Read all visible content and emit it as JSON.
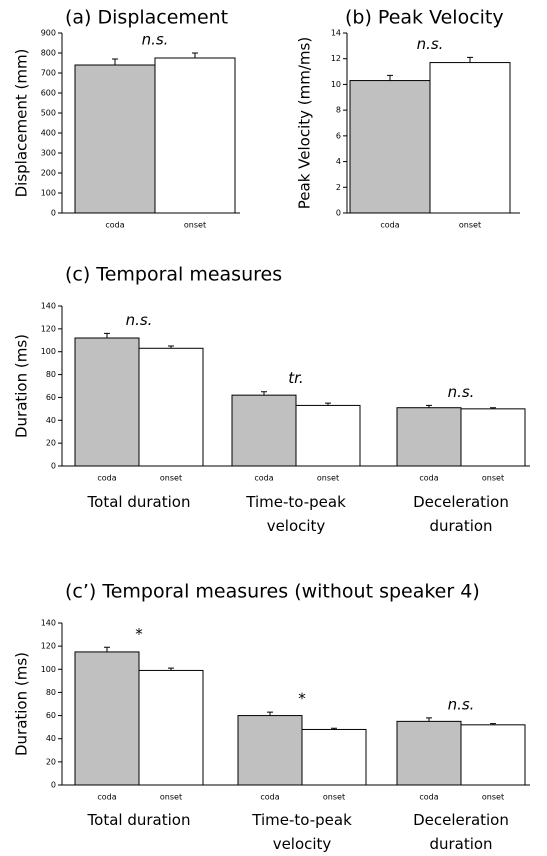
{
  "chart_data": [
    {
      "type": "bar",
      "title": "(a) Displacement",
      "ylabel": "Displacement (mm)",
      "categories": [
        "coda",
        "onset"
      ],
      "values": [
        740,
        775
      ],
      "errors": [
        30,
        25
      ],
      "colors": [
        "#c0c0c0",
        "#ffffff"
      ],
      "annotation": "n.s.",
      "ylim": [
        0,
        900
      ],
      "yticks": [
        0,
        100,
        200,
        300,
        400,
        500,
        600,
        700,
        800,
        900
      ]
    },
    {
      "type": "bar",
      "title": "(b) Peak Velocity",
      "ylabel": "Peak Velocity (mm/ms)",
      "categories": [
        "coda",
        "onset"
      ],
      "values": [
        10.3,
        11.7
      ],
      "errors": [
        0.4,
        0.4
      ],
      "colors": [
        "#c0c0c0",
        "#ffffff"
      ],
      "annotation": "n.s.",
      "ylim": [
        0,
        14
      ],
      "yticks": [
        0,
        2,
        4,
        6,
        8,
        10,
        12,
        14
      ]
    },
    {
      "type": "grouped_bar",
      "title": "(c) Temporal measures",
      "ylabel": "Duration (ms)",
      "categories": [
        "Total duration",
        "Time-to-peak velocity",
        "Deceleration duration"
      ],
      "series": [
        {
          "name": "coda",
          "color": "#c0c0c0",
          "values": [
            112,
            62,
            51
          ],
          "errors": [
            4,
            3,
            2
          ]
        },
        {
          "name": "onset",
          "color": "#ffffff",
          "values": [
            103,
            53,
            50
          ],
          "errors": [
            2,
            2,
            1
          ]
        }
      ],
      "annotations": [
        "n.s.",
        "tr.",
        "n.s."
      ],
      "ylim": [
        0,
        140
      ],
      "yticks": [
        0,
        20,
        40,
        60,
        80,
        100,
        120,
        140
      ]
    },
    {
      "type": "grouped_bar",
      "title": "(c’) Temporal measures (without speaker 4)",
      "ylabel": "Duration (ms)",
      "categories": [
        "Total duration",
        "Time-to-peak velocity",
        "Deceleration duration"
      ],
      "series": [
        {
          "name": "coda",
          "color": "#c0c0c0",
          "values": [
            115,
            60,
            55
          ],
          "errors": [
            4,
            3,
            3
          ]
        },
        {
          "name": "onset",
          "color": "#ffffff",
          "values": [
            99,
            48,
            52
          ],
          "errors": [
            2,
            1,
            1
          ]
        }
      ],
      "annotations": [
        "*",
        "*",
        "n.s."
      ],
      "ylim": [
        0,
        140
      ],
      "yticks": [
        0,
        20,
        40,
        60,
        80,
        100,
        120,
        140
      ]
    }
  ]
}
